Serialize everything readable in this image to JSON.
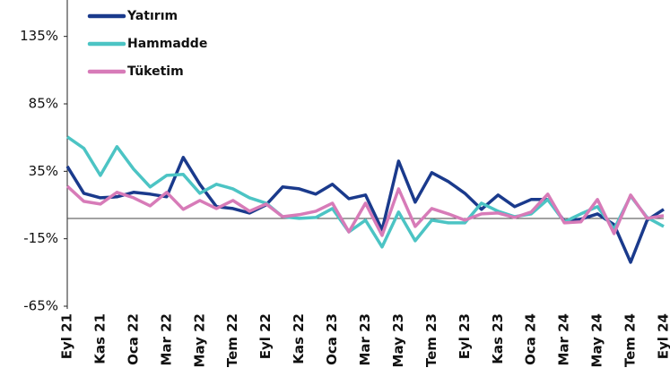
{
  "chart_data": {
    "type": "line",
    "categories": [
      "Eyl 21",
      null,
      "Kas 21",
      null,
      "Oca 22",
      null,
      "Mar 22",
      null,
      "May 22",
      null,
      "Tem 22",
      null,
      "Eyl 22",
      null,
      "Kas 22",
      null,
      "Oca 23",
      null,
      "Mar 23",
      null,
      "May 23",
      null,
      "Tem 23",
      null,
      "Eyl 23",
      null,
      "Kas 23",
      null,
      "Oca 24",
      null,
      "Mar 24",
      null,
      "May 24",
      null,
      "Tem 24",
      null,
      "Eyl 24"
    ],
    "series": [
      {
        "name": "Yatırım",
        "color": "#1a3a8c",
        "values": [
          38.7,
          18.7,
          15.4,
          16.1,
          19.4,
          18.1,
          16.1,
          45.3,
          25.4,
          8.8,
          7.4,
          4.1,
          10.1,
          23.4,
          22.0,
          18.1,
          25.4,
          14.7,
          17.4,
          -8.5,
          42.6,
          12.1,
          34.0,
          27.4,
          18.7,
          6.8,
          17.4,
          8.8,
          14.1,
          14.1,
          -1.9,
          -0.5,
          3.4,
          -4.5,
          -32.4,
          -1.2,
          6.8
        ]
      },
      {
        "name": "Hammadde",
        "color": "#4cc4c4",
        "values": [
          60.6,
          52.0,
          32.0,
          53.3,
          36.7,
          23.4,
          32.0,
          32.7,
          18.7,
          25.4,
          22.0,
          15.4,
          11.4,
          1.4,
          0.1,
          0.8,
          7.4,
          -9.9,
          -1.2,
          -21.1,
          4.8,
          -16.5,
          -1.2,
          -3.2,
          -3.2,
          11.4,
          5.4,
          1.4,
          3.4,
          14.1,
          -2.5,
          3.4,
          8.8,
          -7.9,
          16.7,
          0.8,
          -5.9
        ]
      },
      {
        "name": "Tüketim",
        "color": "#d77bb8",
        "values": [
          24.0,
          12.7,
          10.7,
          19.4,
          15.4,
          9.4,
          19.4,
          6.8,
          13.4,
          7.4,
          13.4,
          5.4,
          10.7,
          1.4,
          2.8,
          5.4,
          11.4,
          -9.9,
          11.4,
          -12.5,
          22.0,
          -5.9,
          7.4,
          3.4,
          -1.2,
          3.4,
          4.1,
          0.8,
          4.8,
          18.1,
          -3.2,
          -2.5,
          14.1,
          -11.2,
          17.4,
          0.1,
          2.1
        ]
      }
    ],
    "ylim": [
      -67,
      162
    ],
    "yticks": [
      {
        "value": -65,
        "label": "-65%"
      },
      {
        "value": -15,
        "label": "-15%"
      },
      {
        "value": 35,
        "label": "35%"
      },
      {
        "value": 85,
        "label": "85%"
      },
      {
        "value": 135,
        "label": "135%"
      }
    ],
    "legend": "top-left"
  }
}
